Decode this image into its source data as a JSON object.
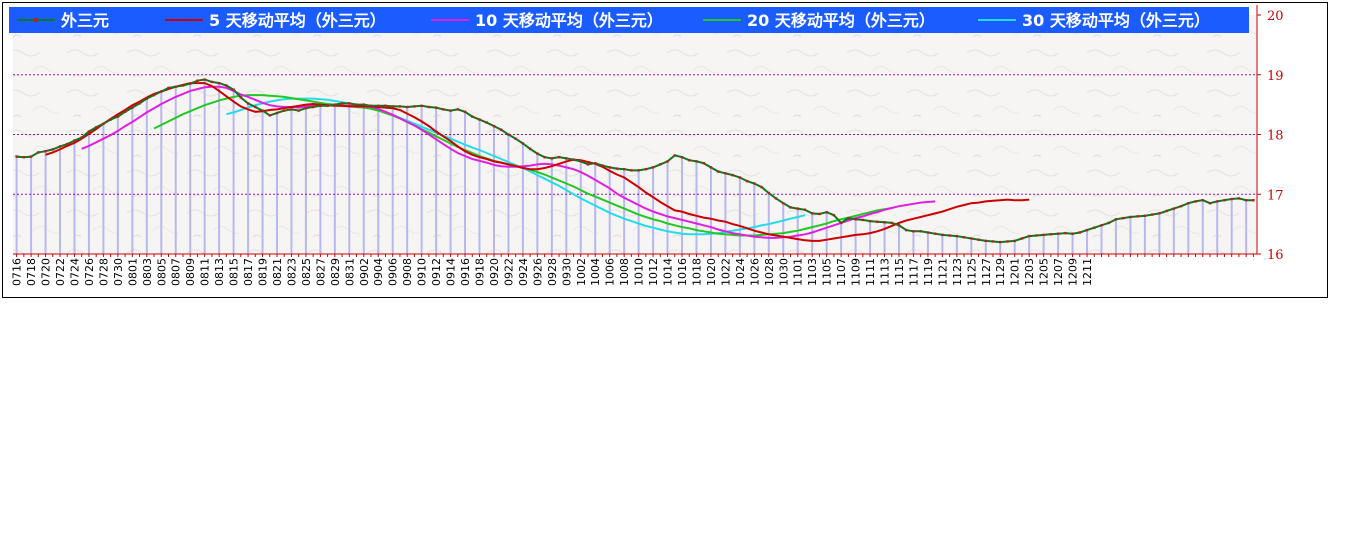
{
  "chart_data": {
    "type": "line",
    "title": "",
    "xlabel": "",
    "ylabel": "",
    "ylim": [
      16,
      20
    ],
    "yticks": [
      16,
      17,
      18,
      19,
      20
    ],
    "grid_y": true,
    "legend_position": "top",
    "x_tick_labels": [
      "0716",
      "0718",
      "0720",
      "0722",
      "0724",
      "0726",
      "0728",
      "0730",
      "0801",
      "0803",
      "0805",
      "0807",
      "0809",
      "0811",
      "0813",
      "0815",
      "0817",
      "0819",
      "0821",
      "0823",
      "0825",
      "0827",
      "0829",
      "0831",
      "0902",
      "0904",
      "0906",
      "0908",
      "0910",
      "0912",
      "0914",
      "0916",
      "0918",
      "0920",
      "0922",
      "0924",
      "0926",
      "0928",
      "0930",
      "1002",
      "1004",
      "1006",
      "1008",
      "1010",
      "1012",
      "1014",
      "1016",
      "1018",
      "1020",
      "1022",
      "1024",
      "1026",
      "1028",
      "1030",
      "1101",
      "1103",
      "1105",
      "1107",
      "1109",
      "1111",
      "1113",
      "1115",
      "1117",
      "1119",
      "1121",
      "1123",
      "1125",
      "1127",
      "1129",
      "1201",
      "1203",
      "1205",
      "1207",
      "1209",
      "1211"
    ],
    "x_label_step": 2,
    "series": [
      {
        "name": "外三元",
        "color": "#0c7a1a",
        "marker_color": "#b22222",
        "markers": true,
        "values": [
          17.63,
          17.62,
          17.63,
          17.7,
          17.72,
          17.75,
          17.8,
          17.84,
          17.9,
          17.95,
          18.05,
          18.12,
          18.18,
          18.25,
          18.3,
          18.38,
          18.45,
          18.52,
          18.6,
          18.66,
          18.72,
          18.78,
          18.8,
          18.82,
          18.85,
          18.9,
          18.92,
          18.88,
          18.86,
          18.82,
          18.75,
          18.62,
          18.52,
          18.46,
          18.4,
          18.32,
          18.36,
          18.4,
          18.42,
          18.4,
          18.44,
          18.46,
          18.48,
          18.48,
          18.5,
          18.52,
          18.52,
          18.5,
          18.5,
          18.48,
          18.48,
          18.48,
          18.47,
          18.47,
          18.46,
          18.47,
          18.48,
          18.46,
          18.45,
          18.42,
          18.4,
          18.42,
          18.38,
          18.3,
          18.25,
          18.2,
          18.14,
          18.08,
          18.0,
          17.93,
          17.85,
          17.76,
          17.68,
          17.62,
          17.6,
          17.62,
          17.6,
          17.58,
          17.55,
          17.5,
          17.52,
          17.48,
          17.45,
          17.43,
          17.42,
          17.4,
          17.4,
          17.42,
          17.45,
          17.5,
          17.55,
          17.65,
          17.62,
          17.57,
          17.55,
          17.52,
          17.45,
          17.38,
          17.35,
          17.32,
          17.28,
          17.22,
          17.18,
          17.12,
          17.02,
          16.93,
          16.85,
          16.78,
          16.76,
          16.74,
          16.68,
          16.67,
          16.7,
          16.65,
          16.52,
          16.6,
          16.58,
          16.57,
          16.55,
          16.54,
          16.53,
          16.52,
          16.48,
          16.4,
          16.38,
          16.38,
          16.36,
          16.34,
          16.32,
          16.31,
          16.3,
          16.28,
          16.26,
          16.24,
          16.22,
          16.21,
          16.2,
          16.21,
          16.22,
          16.26,
          16.3,
          16.31,
          16.32,
          16.33,
          16.34,
          16.35,
          16.34,
          16.36,
          16.4,
          16.44,
          16.48,
          16.52,
          16.58,
          16.6,
          16.62,
          16.63,
          16.64,
          16.66,
          16.68,
          16.72,
          16.76,
          16.8,
          16.85,
          16.88,
          16.9,
          16.85,
          16.88,
          16.9,
          16.92,
          16.93,
          16.9,
          16.9
        ]
      },
      {
        "name": "5 天移动平均（外三元）",
        "color": "#cc0000",
        "start_index": 4,
        "values": [
          17.66,
          17.7,
          17.75,
          17.81,
          17.86,
          17.93,
          18.01,
          18.09,
          18.18,
          18.26,
          18.34,
          18.41,
          18.49,
          18.55,
          18.62,
          18.68,
          18.72,
          18.76,
          18.8,
          18.83,
          18.86,
          18.86,
          18.86,
          18.81,
          18.73,
          18.64,
          18.55,
          18.47,
          18.42,
          18.38,
          18.39,
          18.41,
          18.42,
          18.44,
          18.46,
          18.48,
          18.5,
          18.51,
          18.5,
          18.49,
          18.48,
          18.48,
          18.47,
          18.47,
          18.47,
          18.47,
          18.46,
          18.45,
          18.44,
          18.41,
          18.35,
          18.29,
          18.22,
          18.14,
          18.05,
          17.97,
          17.89,
          17.8,
          17.72,
          17.66,
          17.62,
          17.59,
          17.55,
          17.53,
          17.5,
          17.47,
          17.44,
          17.42,
          17.42,
          17.44,
          17.47,
          17.51,
          17.55,
          17.58,
          17.57,
          17.54,
          17.51,
          17.46,
          17.39,
          17.33,
          17.28,
          17.2,
          17.12,
          17.03,
          16.95,
          16.87,
          16.8,
          16.73,
          16.71,
          16.67,
          16.64,
          16.61,
          16.59,
          16.56,
          16.54,
          16.5,
          16.47,
          16.43,
          16.39,
          16.36,
          16.33,
          16.31,
          16.29,
          16.27,
          16.25,
          16.23,
          16.22,
          16.22,
          16.24,
          16.26,
          16.28,
          16.3,
          16.32,
          16.33,
          16.35,
          16.38,
          16.42,
          16.47,
          16.52,
          16.56,
          16.59,
          16.62,
          16.65,
          16.68,
          16.71,
          16.75,
          16.79,
          16.82,
          16.85,
          16.86,
          16.88,
          16.89,
          16.9,
          16.91,
          16.9,
          16.9,
          16.91
        ]
      },
      {
        "name": "10 天移动平均（外三元）",
        "color": "#e020e0",
        "start_index": 9,
        "values": [
          17.76,
          17.81,
          17.87,
          17.93,
          17.99,
          18.06,
          18.14,
          18.21,
          18.29,
          18.37,
          18.44,
          18.51,
          18.57,
          18.63,
          18.68,
          18.73,
          18.76,
          18.79,
          18.8,
          18.8,
          18.78,
          18.73,
          18.67,
          18.63,
          18.58,
          18.53,
          18.49,
          18.47,
          18.46,
          18.46,
          18.45,
          18.47,
          18.48,
          18.48,
          18.49,
          18.49,
          18.48,
          18.48,
          18.47,
          18.47,
          18.46,
          18.43,
          18.38,
          18.33,
          18.27,
          18.21,
          18.15,
          18.08,
          18.0,
          17.92,
          17.84,
          17.76,
          17.69,
          17.64,
          17.59,
          17.56,
          17.53,
          17.49,
          17.47,
          17.46,
          17.46,
          17.47,
          17.48,
          17.5,
          17.51,
          17.5,
          17.48,
          17.45,
          17.42,
          17.37,
          17.31,
          17.24,
          17.17,
          17.1,
          17.01,
          16.94,
          16.88,
          16.82,
          16.76,
          16.71,
          16.67,
          16.63,
          16.6,
          16.57,
          16.54,
          16.51,
          16.48,
          16.45,
          16.41,
          16.38,
          16.35,
          16.33,
          16.31,
          16.29,
          16.28,
          16.27,
          16.27,
          16.28,
          16.29,
          16.31,
          16.33,
          16.36,
          16.4,
          16.44,
          16.48,
          16.52,
          16.56,
          16.6,
          16.63,
          16.67,
          16.7,
          16.74,
          16.77,
          16.8,
          16.82,
          16.84,
          16.86,
          16.87,
          16.88
        ]
      },
      {
        "name": "20 天移动平均（外三元）",
        "color": "#22c822",
        "start_index": 19,
        "values": [
          18.1,
          18.16,
          18.22,
          18.28,
          18.34,
          18.39,
          18.44,
          18.49,
          18.53,
          18.57,
          18.6,
          18.63,
          18.65,
          18.66,
          18.66,
          18.66,
          18.65,
          18.64,
          18.63,
          18.61,
          18.59,
          18.57,
          18.55,
          18.53,
          18.51,
          18.5,
          18.48,
          18.47,
          18.46,
          18.45,
          18.43,
          18.4,
          18.36,
          18.32,
          18.27,
          18.21,
          18.15,
          18.09,
          18.03,
          17.97,
          17.91,
          17.85,
          17.79,
          17.74,
          17.69,
          17.64,
          17.6,
          17.56,
          17.53,
          17.5,
          17.48,
          17.45,
          17.41,
          17.37,
          17.33,
          17.28,
          17.23,
          17.18,
          17.13,
          17.07,
          17.01,
          16.96,
          16.91,
          16.86,
          16.81,
          16.76,
          16.71,
          16.66,
          16.62,
          16.58,
          16.55,
          16.51,
          16.48,
          16.45,
          16.43,
          16.4,
          16.38,
          16.36,
          16.34,
          16.33,
          16.32,
          16.31,
          16.31,
          16.31,
          16.32,
          16.33,
          16.34,
          16.35,
          16.37,
          16.39,
          16.42,
          16.45,
          16.48,
          16.51,
          16.55,
          16.58,
          16.61,
          16.64,
          16.67,
          16.7,
          16.73,
          16.75,
          16.77
        ]
      },
      {
        "name": "30 天移动平均（外三元）",
        "color": "#22dcec",
        "start_index": 29,
        "values": [
          18.34,
          18.37,
          18.41,
          18.45,
          18.49,
          18.52,
          18.55,
          18.57,
          18.59,
          18.6,
          18.6,
          18.6,
          18.6,
          18.59,
          18.58,
          18.56,
          18.54,
          18.52,
          18.5,
          18.47,
          18.44,
          18.41,
          18.37,
          18.33,
          18.28,
          18.23,
          18.18,
          18.13,
          18.08,
          18.03,
          17.98,
          17.93,
          17.88,
          17.83,
          17.78,
          17.74,
          17.69,
          17.64,
          17.59,
          17.54,
          17.49,
          17.44,
          17.38,
          17.32,
          17.26,
          17.2,
          17.14,
          17.07,
          17.0,
          16.93,
          16.87,
          16.81,
          16.75,
          16.69,
          16.64,
          16.59,
          16.55,
          16.51,
          16.47,
          16.44,
          16.41,
          16.38,
          16.36,
          16.34,
          16.33,
          16.33,
          16.33,
          16.34,
          16.35,
          16.37,
          16.39,
          16.41,
          16.43,
          16.45,
          16.48,
          16.5,
          16.53,
          16.56,
          16.59,
          16.62,
          16.65
        ]
      }
    ],
    "colors": {
      "legend_bg": "#1a5cff",
      "grid": "#8a1aa8",
      "axis": "#cc0000",
      "bars": "#b8b8f0"
    }
  }
}
